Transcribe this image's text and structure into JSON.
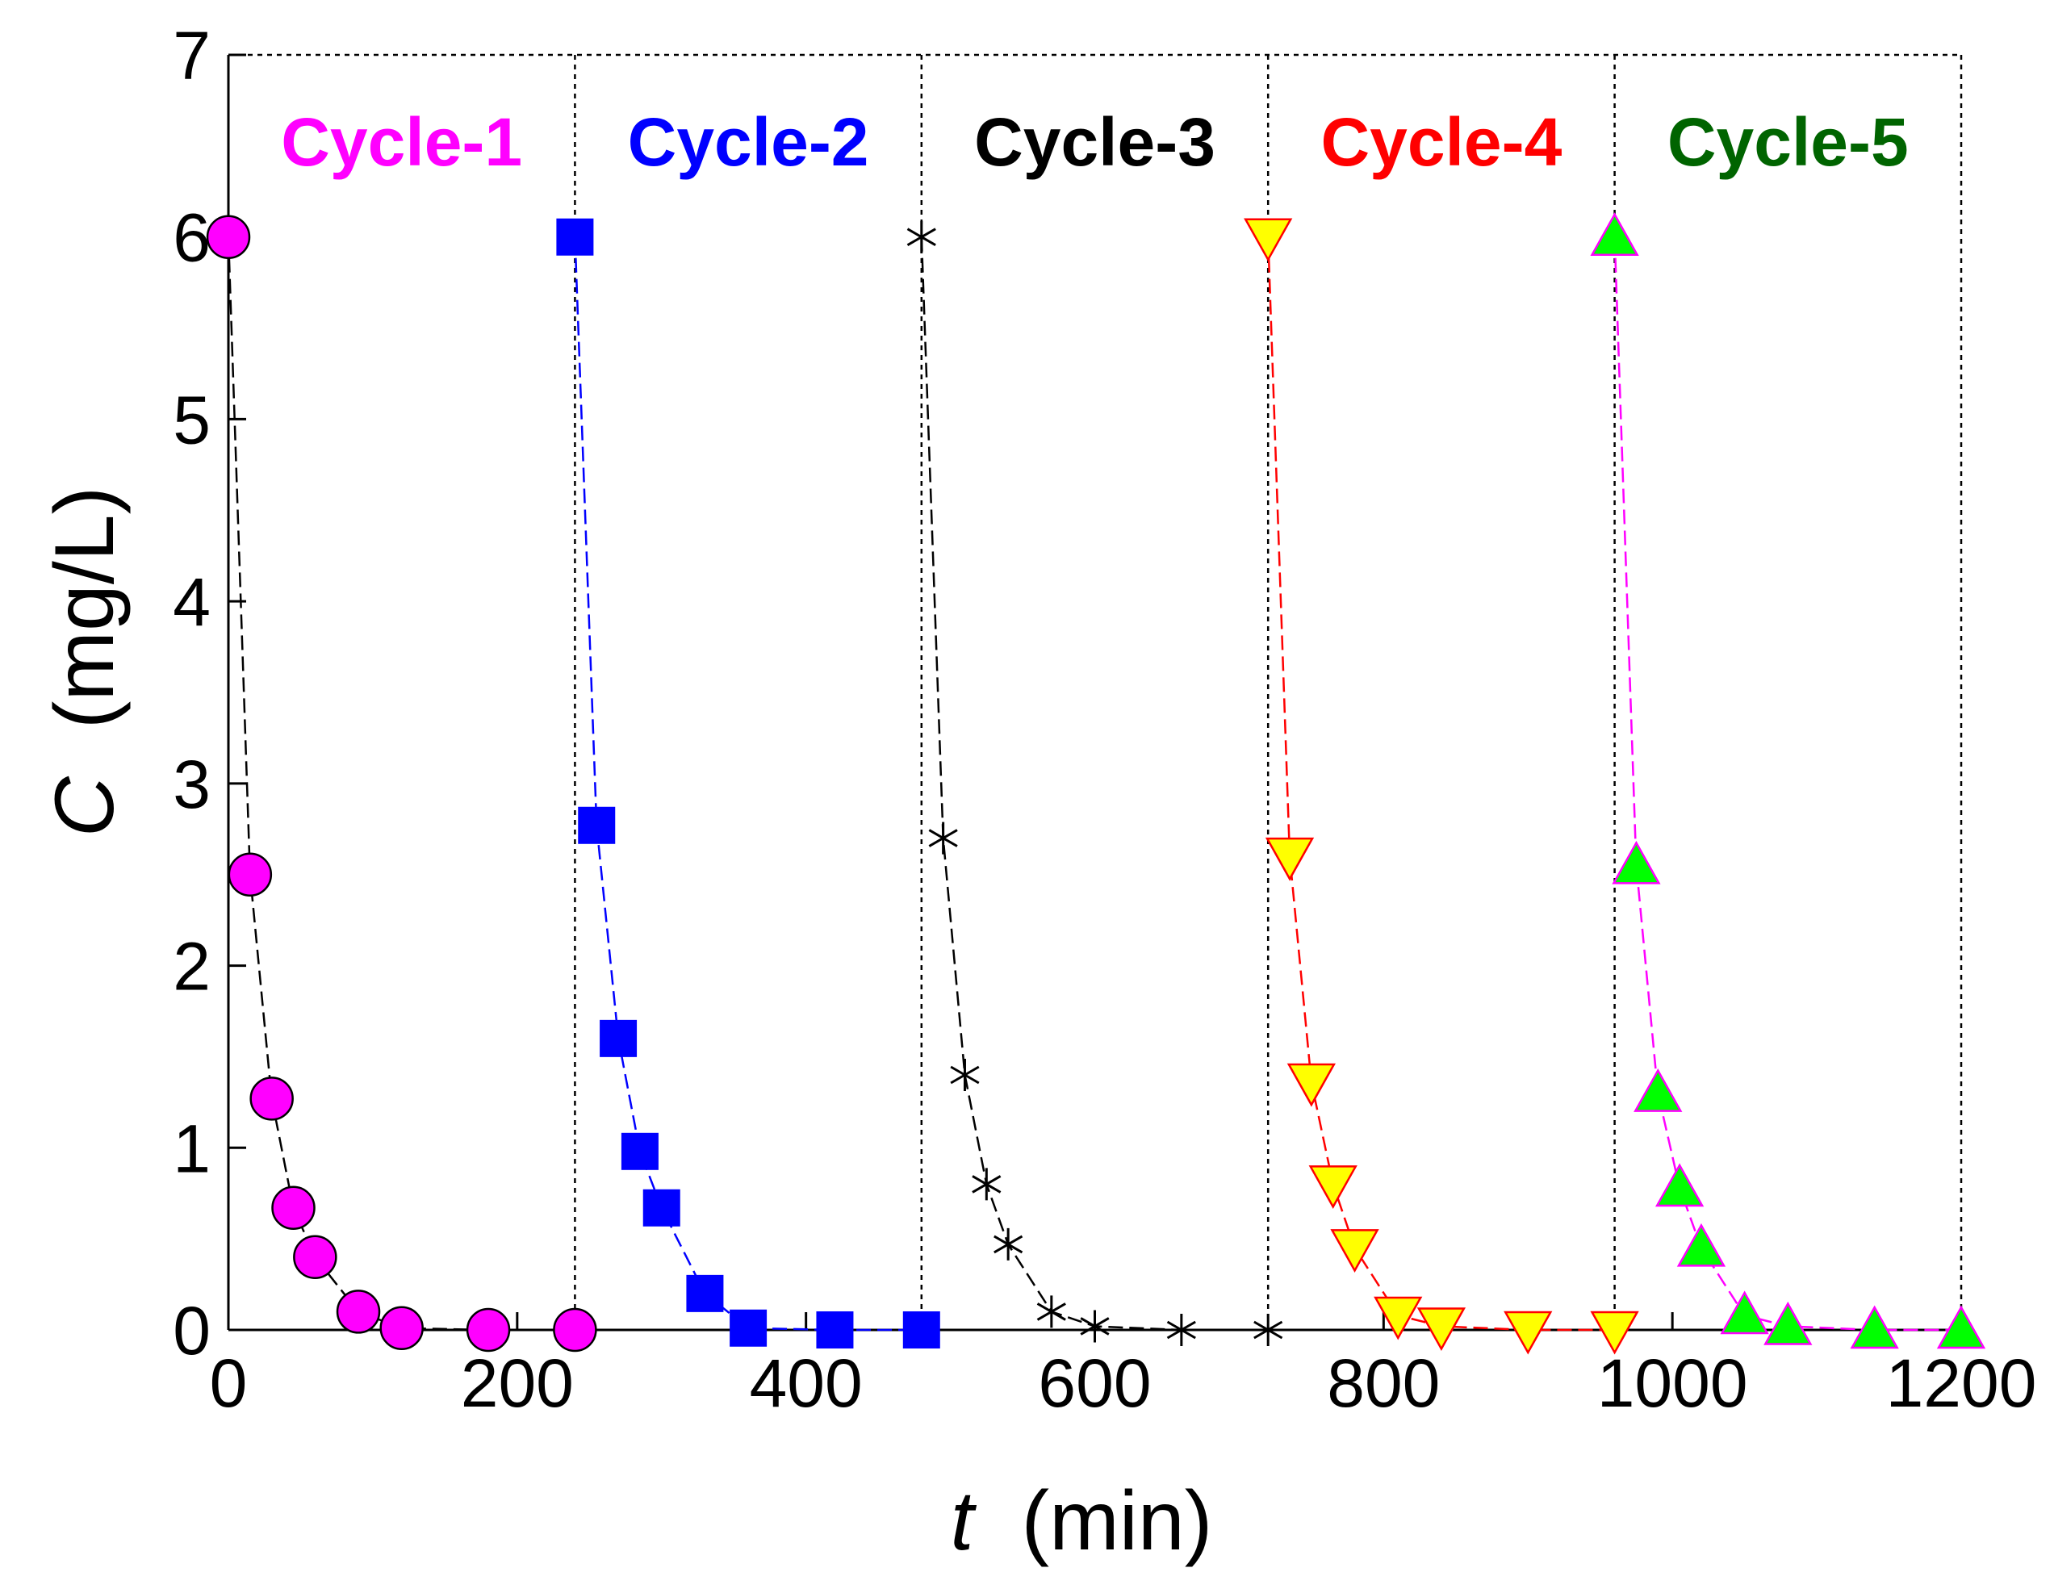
{
  "chart_data": {
    "type": "scatter",
    "title": "",
    "xlabel": "t",
    "xlabel_unit": "(min)",
    "ylabel": "C",
    "ylabel_unit": "(mg/L)",
    "xlim": [
      0,
      1200
    ],
    "ylim": [
      0,
      7
    ],
    "xticks": [
      "0",
      "200",
      "400",
      "600",
      "800",
      "1000",
      "1200"
    ],
    "yticks": [
      "0",
      "1",
      "2",
      "3",
      "4",
      "5",
      "6",
      "7"
    ],
    "cycle_boundaries": [
      240,
      480,
      720,
      960
    ],
    "grid": false,
    "series": [
      {
        "name": "Cycle-1",
        "label_color": "#ff00ff",
        "marker": "circle",
        "marker_fill": "#ff00ff",
        "marker_edge": "#000000",
        "line_color": "#000000",
        "x": [
          0,
          15,
          30,
          45,
          60,
          90,
          120,
          180,
          240
        ],
        "y": [
          6.0,
          2.5,
          1.27,
          0.67,
          0.4,
          0.1,
          0.01,
          0.0,
          0.0
        ]
      },
      {
        "name": "Cycle-2",
        "label_color": "#0000ff",
        "marker": "square",
        "marker_fill": "#0000ff",
        "marker_edge": "#0000ff",
        "line_color": "#0000ff",
        "x": [
          240,
          255,
          270,
          285,
          300,
          330,
          360,
          420,
          480
        ],
        "y": [
          6.0,
          2.77,
          1.6,
          0.98,
          0.67,
          0.2,
          0.01,
          0.0,
          0.0
        ]
      },
      {
        "name": "Cycle-3",
        "label_color": "#000000",
        "marker": "asterisk",
        "marker_fill": "#000000",
        "marker_edge": "#000000",
        "line_color": "#000000",
        "x": [
          480,
          495,
          510,
          525,
          540,
          570,
          600,
          660,
          720
        ],
        "y": [
          6.0,
          2.7,
          1.4,
          0.8,
          0.47,
          0.1,
          0.02,
          0.0,
          0.0
        ]
      },
      {
        "name": "Cycle-4",
        "label_color": "#ff0000",
        "marker": "triangle-down",
        "marker_fill": "#ffff00",
        "marker_edge": "#ff0000",
        "line_color": "#ff0000",
        "x": [
          720,
          735,
          750,
          765,
          780,
          810,
          840,
          900,
          960
        ],
        "y": [
          6.0,
          2.6,
          1.36,
          0.8,
          0.45,
          0.08,
          0.02,
          0.0,
          0.0
        ]
      },
      {
        "name": "Cycle-5",
        "label_color": "#006400",
        "marker": "triangle-up",
        "marker_fill": "#00ff00",
        "marker_edge": "#ff00ff",
        "line_color": "#ff00ff",
        "x": [
          960,
          975,
          990,
          1005,
          1020,
          1050,
          1080,
          1140,
          1200
        ],
        "y": [
          6.0,
          2.55,
          1.3,
          0.78,
          0.45,
          0.08,
          0.02,
          0.0,
          0.0
        ]
      }
    ]
  }
}
